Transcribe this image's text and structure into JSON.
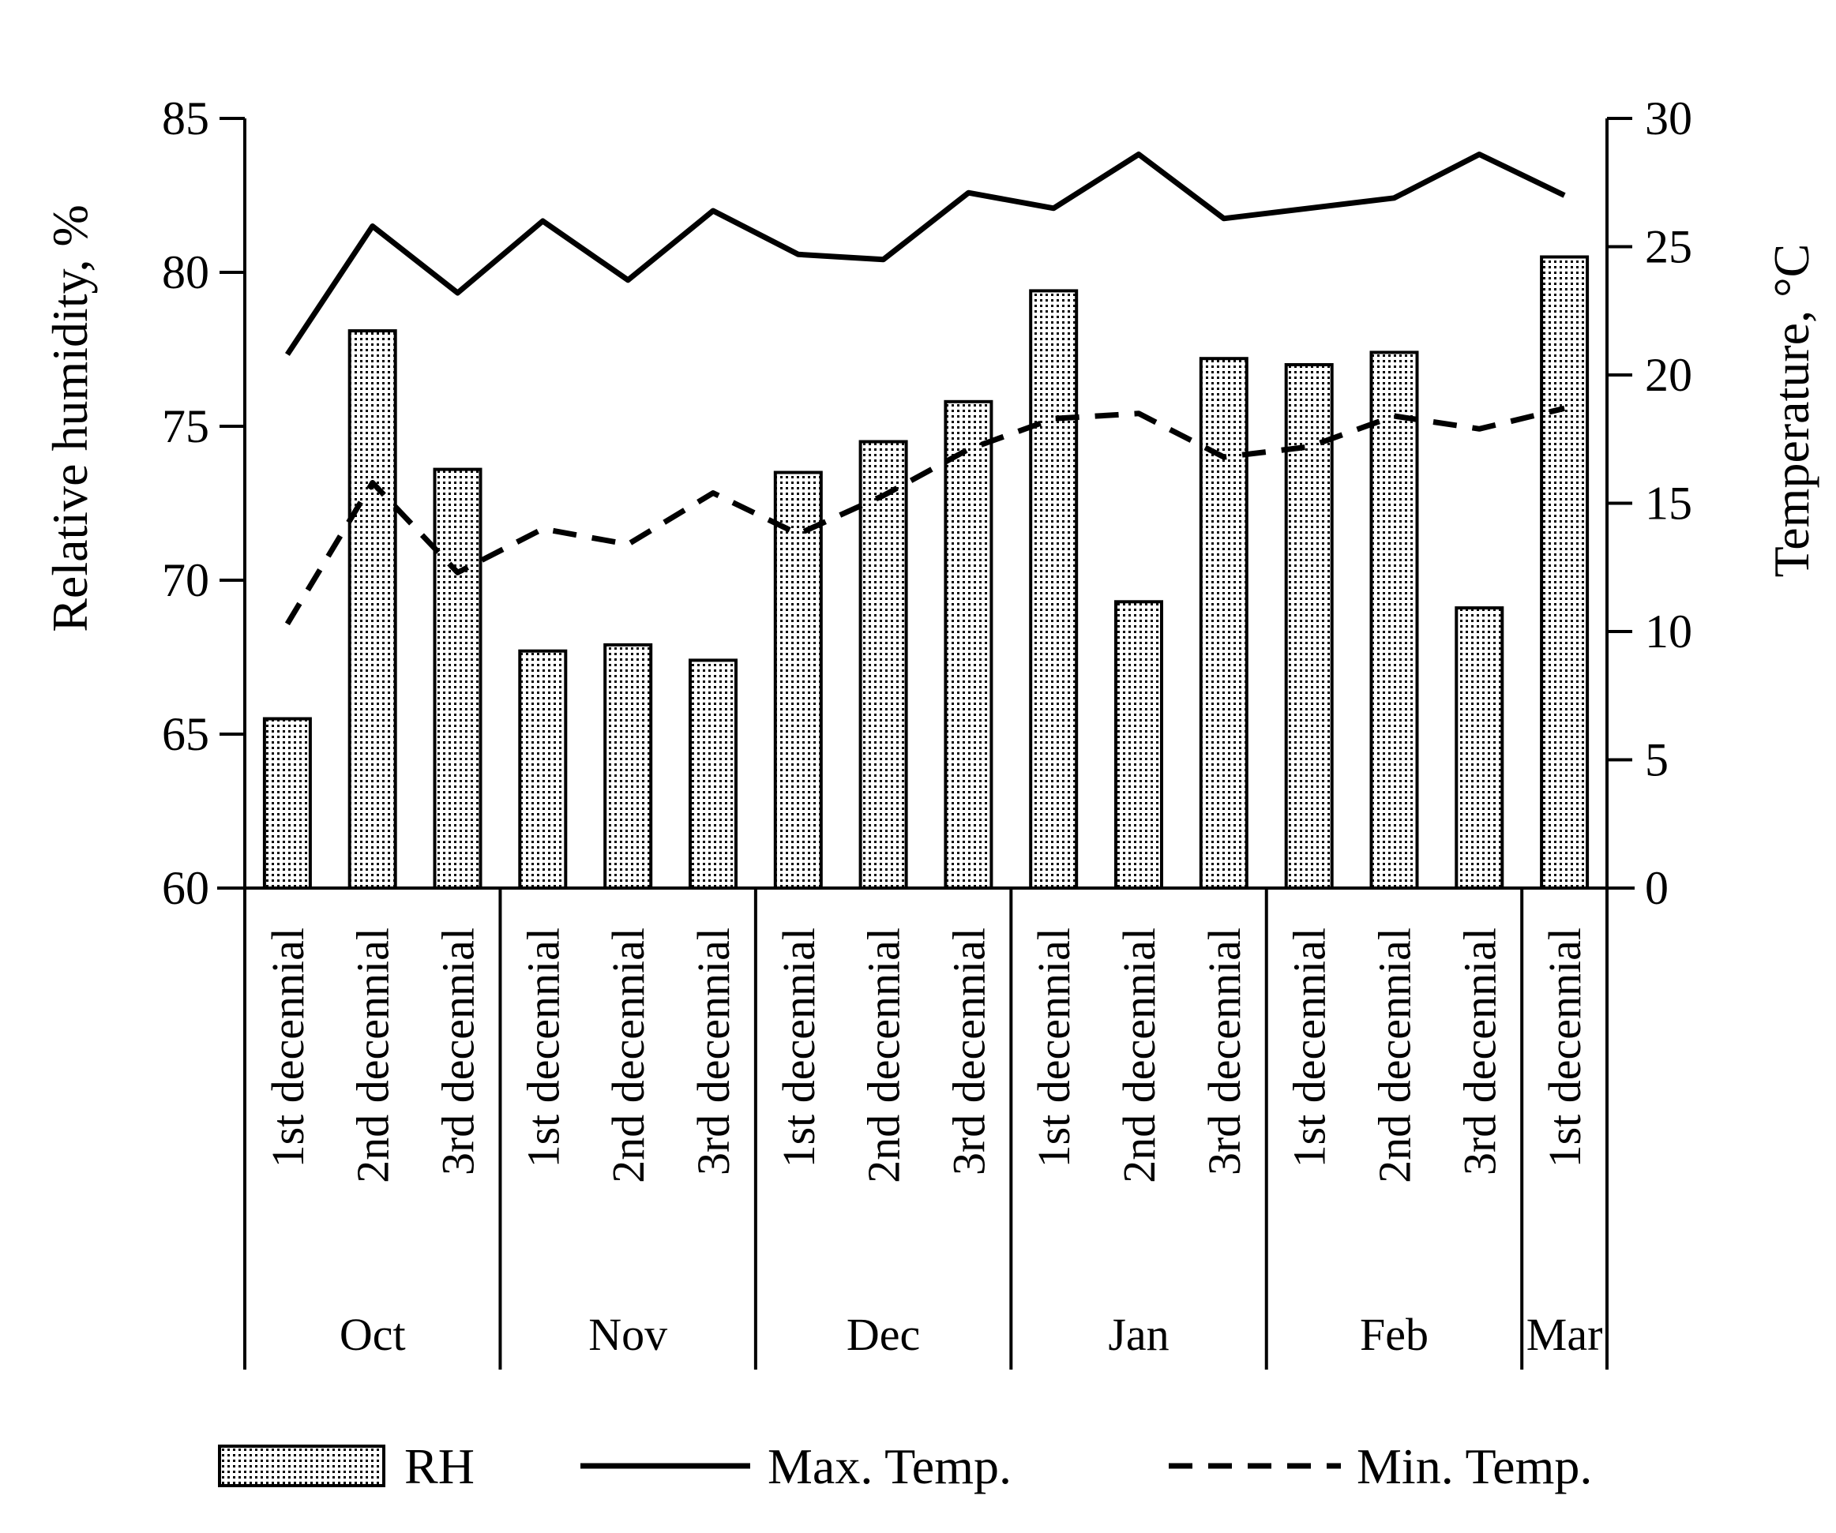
{
  "chart_data": {
    "type": "bar+line",
    "categories": [
      "1st decennial",
      "2nd decennial",
      "3rd decennial",
      "1st decennial",
      "2nd decennial",
      "3rd decennial",
      "1st decennial",
      "2nd decennial",
      "3rd decennial",
      "1st decennial",
      "2nd decennial",
      "3rd decennial",
      "1st decennial",
      "2nd decennial",
      "3rd decennial",
      "1st decennial"
    ],
    "groups": [
      {
        "label": "Oct",
        "count": 3
      },
      {
        "label": "Nov",
        "count": 3
      },
      {
        "label": "Dec",
        "count": 3
      },
      {
        "label": "Jan",
        "count": 3
      },
      {
        "label": "Feb",
        "count": 3
      },
      {
        "label": "Mar",
        "count": 1
      }
    ],
    "series": [
      {
        "name": "RH",
        "kind": "bar",
        "axis": "left",
        "values": [
          65.5,
          78.1,
          73.6,
          67.7,
          67.9,
          67.4,
          73.5,
          74.5,
          75.8,
          79.4,
          69.3,
          77.2,
          77.0,
          77.4,
          69.1,
          80.5
        ]
      },
      {
        "name": "Max. Temp.",
        "kind": "line",
        "style": "solid",
        "axis": "right",
        "values": [
          20.8,
          25.8,
          23.2,
          26.0,
          23.7,
          26.4,
          24.7,
          24.5,
          27.1,
          26.5,
          28.6,
          26.1,
          26.5,
          26.9,
          28.6,
          27.0
        ]
      },
      {
        "name": "Min. Temp.",
        "kind": "line",
        "style": "dashed",
        "axis": "right",
        "values": [
          10.3,
          15.8,
          12.3,
          14.0,
          13.4,
          15.4,
          13.8,
          15.3,
          17.1,
          18.3,
          18.5,
          16.8,
          17.2,
          18.4,
          17.9,
          18.7
        ]
      }
    ],
    "y_left": {
      "label": "Relative humidity, %",
      "range": [
        60,
        85
      ],
      "ticks": [
        60,
        65,
        70,
        75,
        80,
        85
      ]
    },
    "y_right": {
      "label": "Temperature, °C",
      "range": [
        0,
        30
      ],
      "ticks": [
        0,
        5,
        10,
        15,
        20,
        25,
        30
      ]
    },
    "legend": {
      "position": "bottom",
      "entries": [
        "RH",
        "Max. Temp.",
        "Min. Temp."
      ]
    },
    "grid": false
  }
}
